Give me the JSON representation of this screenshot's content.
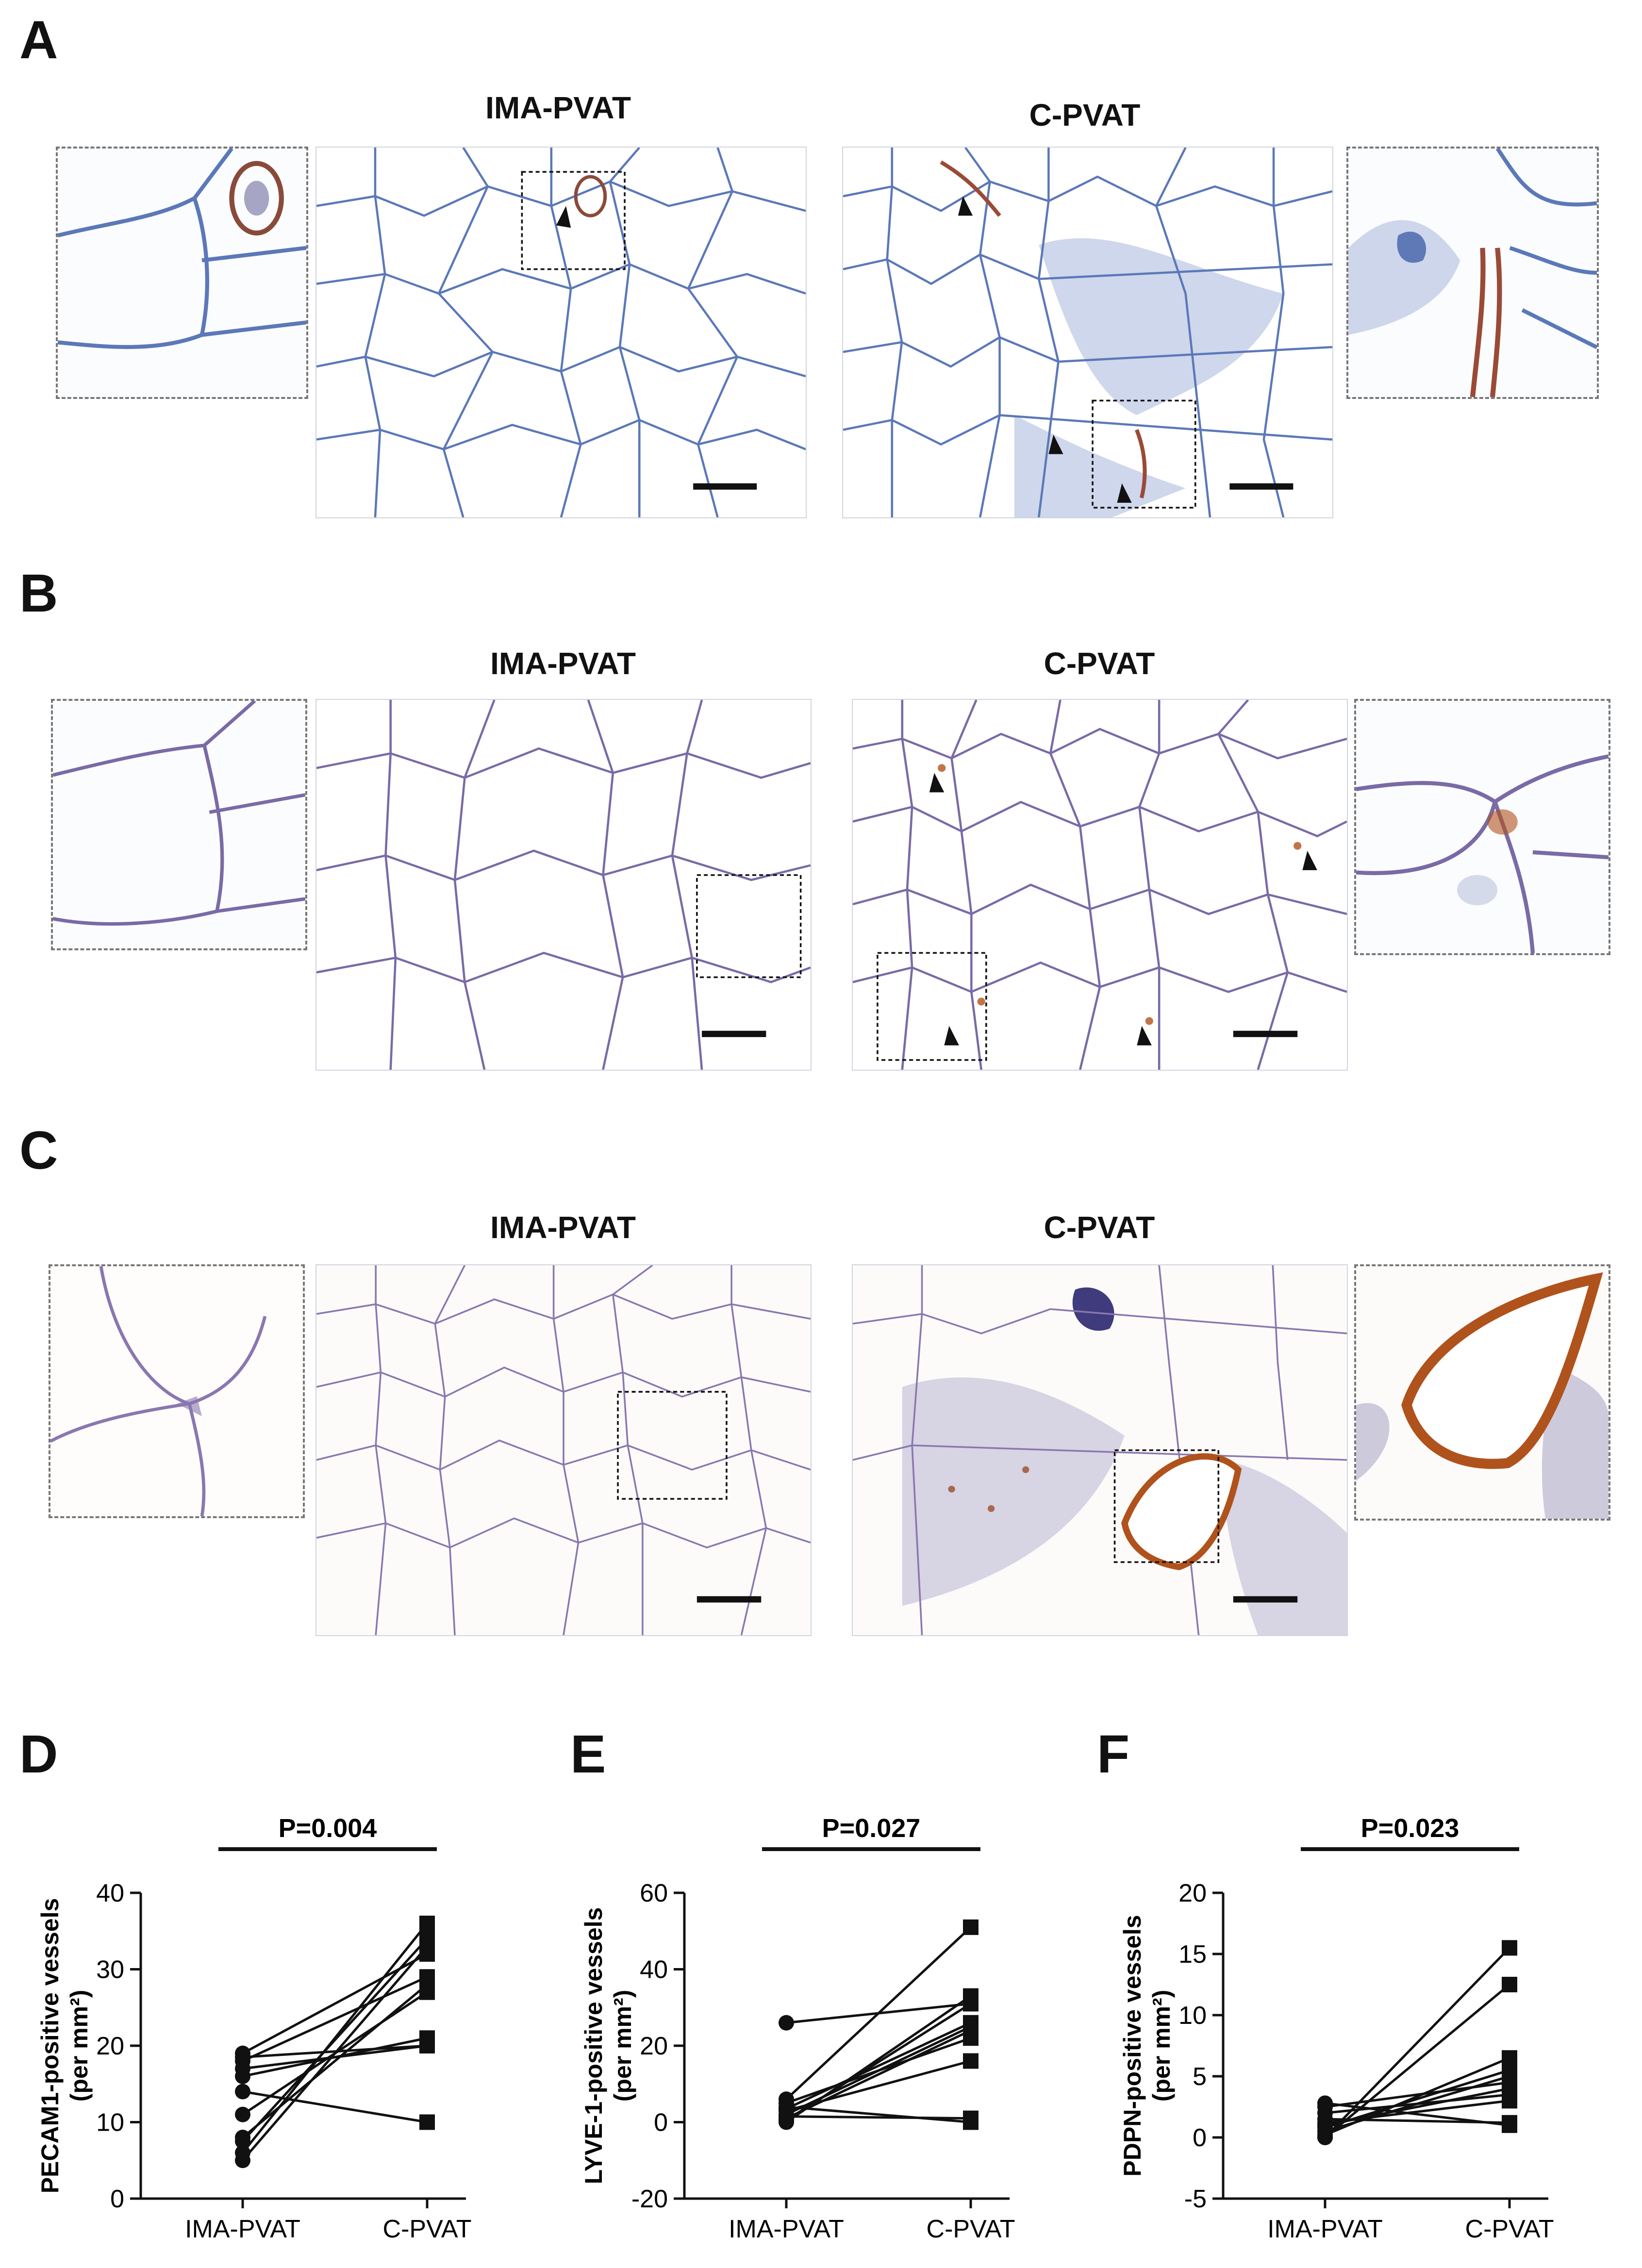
{
  "panels": {
    "A": {
      "letter": "A",
      "left_title": "IMA-PVAT",
      "right_title": "C-PVAT"
    },
    "B": {
      "letter": "B",
      "left_title": "IMA-PVAT",
      "right_title": "C-PVAT"
    },
    "C": {
      "letter": "C",
      "left_title": "IMA-PVAT",
      "right_title": "C-PVAT"
    },
    "D": {
      "letter": "D"
    },
    "E": {
      "letter": "E"
    },
    "F": {
      "letter": "F"
    }
  },
  "colors": {
    "stain_blue": "#5b78b8",
    "stain_hematoxylin": "#7a6aa6",
    "stain_brown": "#b0521c",
    "tissue_bg": "#ffffff"
  },
  "chart_data": [
    {
      "type": "paired-line",
      "panel": "D",
      "ylabel": "PECAM1-positive vessels\n(per mm²)",
      "categories": [
        "IMA-PVAT",
        "C-PVAT"
      ],
      "ylim": [
        0,
        40
      ],
      "yticks": [
        0,
        10,
        20,
        30,
        40
      ],
      "annotation": "P=0.004",
      "pairs": [
        [
          5,
          33
        ],
        [
          6,
          36
        ],
        [
          7.5,
          34
        ],
        [
          8,
          28
        ],
        [
          11,
          27
        ],
        [
          14,
          10
        ],
        [
          16,
          21
        ],
        [
          17,
          20
        ],
        [
          18,
          29
        ],
        [
          18.5,
          20
        ],
        [
          19,
          32
        ]
      ]
    },
    {
      "type": "paired-line",
      "panel": "E",
      "ylabel": "LYVE-1-positive vessels\n(per mm²)",
      "categories": [
        "IMA-PVAT",
        "C-PVAT"
      ],
      "ylim": [
        -20,
        60
      ],
      "yticks": [
        -20,
        0,
        20,
        40,
        60
      ],
      "annotation": "P=0.027",
      "pairs": [
        [
          0,
          33
        ],
        [
          0.5,
          31
        ],
        [
          1,
          24
        ],
        [
          2,
          25
        ],
        [
          3,
          16
        ],
        [
          4,
          0
        ],
        [
          5,
          22
        ],
        [
          6,
          51
        ],
        [
          26,
          31
        ],
        [
          1.5,
          1
        ],
        [
          3.5,
          26
        ]
      ]
    },
    {
      "type": "paired-line",
      "panel": "F",
      "ylabel": "PDPN-positive vessels\n(per mm²)",
      "categories": [
        "IMA-PVAT",
        "C-PVAT"
      ],
      "ylim": [
        -5,
        20
      ],
      "yticks": [
        -5,
        0,
        5,
        10,
        15,
        20
      ],
      "annotation": "P=0.023",
      "pairs": [
        [
          0,
          15.5
        ],
        [
          0,
          12.5
        ],
        [
          0.2,
          6.5
        ],
        [
          0.5,
          5
        ],
        [
          1,
          4
        ],
        [
          1.5,
          1.2
        ],
        [
          2,
          3.5
        ],
        [
          2.5,
          4.5
        ],
        [
          2.8,
          1
        ],
        [
          0.8,
          5.5
        ],
        [
          1.2,
          3
        ]
      ]
    }
  ]
}
